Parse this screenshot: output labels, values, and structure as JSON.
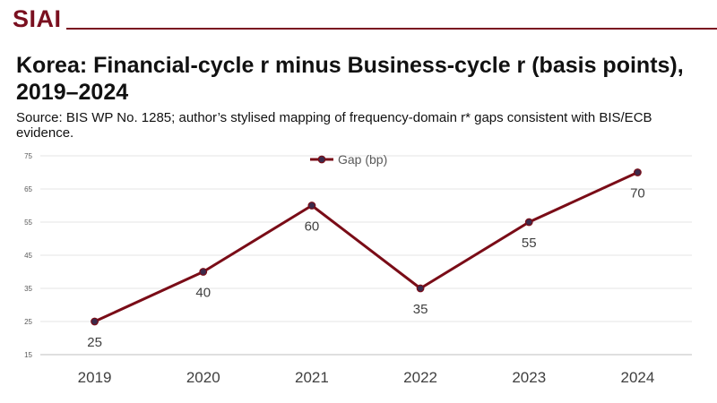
{
  "brand": "SIAI",
  "chart_data": {
    "type": "line",
    "title": "Korea: Financial-cycle r minus Business-cycle r (basis points), 2019–2024",
    "subtitle": "Source: BIS WP No. 1285; author’s stylised mapping of frequency-domain r* gaps consistent with BIS/ECB evidence.",
    "categories": [
      "2019",
      "2020",
      "2021",
      "2022",
      "2023",
      "2024"
    ],
    "series": [
      {
        "name": "Gap (bp)",
        "values": [
          25,
          40,
          60,
          35,
          55,
          70
        ],
        "color": "#7a0c17",
        "marker_color": "#3c2a4a"
      }
    ],
    "ylim": [
      15,
      75
    ],
    "yticks": [
      15,
      25,
      35,
      45,
      55,
      65,
      75
    ],
    "grid": true,
    "legend": "top-center",
    "data_labels": true
  }
}
